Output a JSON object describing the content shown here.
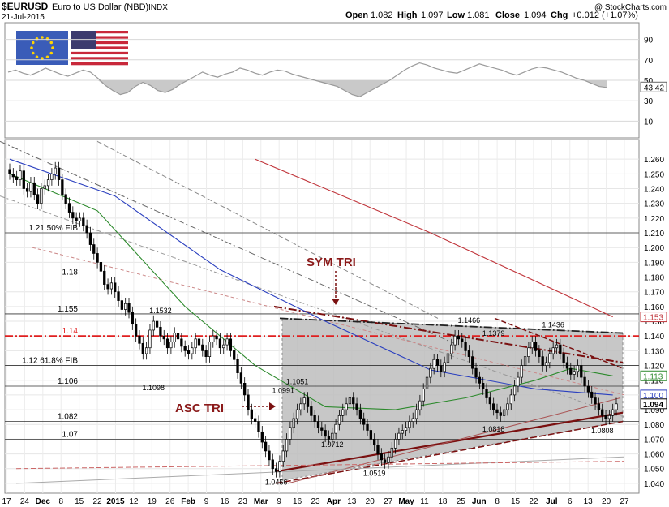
{
  "header": {
    "symbol": "$EURUSD",
    "name": "Euro to US Dollar (NBD)",
    "type": "INDX",
    "date": "21-Jul-2015",
    "watermark": "@ StockCharts.com",
    "ohlc": {
      "open_label": "Open",
      "open": "1.082",
      "high_label": "High",
      "high": "1.097",
      "low_label": "Low",
      "low": "1.081",
      "close_label": "Close",
      "close": "1.094",
      "chg_label": "Chg",
      "chg": "+0.012 (+1.07%)"
    }
  },
  "colors": {
    "ma_blue": "#2a3fbf",
    "ma_green": "#2d8a2d",
    "ma_red": "#c0343a",
    "fib_red": "#e02020",
    "trend_dark": "#7a1010",
    "triangle_fill": "#bdbdbd",
    "annotation": "#8b1a1a",
    "candle_up": "#ffffff",
    "candle_down": "#000000"
  },
  "chart_data": [
    {
      "type": "line",
      "panel": "rsi",
      "ylim": [
        0,
        100
      ],
      "ticks": [
        "90",
        "70",
        "50",
        "30",
        "10"
      ],
      "current_value": "43.42",
      "series": [
        {
          "values": [
            58,
            60,
            57,
            55,
            58,
            62,
            59,
            56,
            54,
            57,
            60,
            58,
            52,
            45,
            40,
            36,
            38,
            44,
            48,
            45,
            40,
            38,
            41,
            46,
            50,
            54,
            58,
            55,
            53,
            56,
            58,
            62,
            60,
            57,
            55,
            58,
            60,
            59,
            56,
            54,
            52,
            50,
            48,
            46,
            44,
            40,
            36,
            34,
            38,
            42,
            46,
            50,
            55,
            60,
            64,
            67,
            65,
            62,
            60,
            58,
            57,
            60,
            63,
            66,
            64,
            62,
            60,
            57,
            55,
            58,
            61,
            63,
            62,
            60,
            58,
            55,
            52,
            50,
            47,
            44,
            43
          ]
        }
      ],
      "overbought": 70,
      "oversold": 30
    },
    {
      "type": "candlestick",
      "panel": "price",
      "ylim": [
        1.035,
        1.27
      ],
      "x_ticks": [
        "17",
        "24",
        "Dec",
        "8",
        "15",
        "22",
        "2015",
        "12",
        "19",
        "26",
        "Feb",
        "9",
        "16",
        "23",
        "Mar",
        "9",
        "16",
        "23",
        "Apr",
        "13",
        "20",
        "27",
        "May",
        "11",
        "18",
        "25",
        "Jun",
        "8",
        "15",
        "22",
        "Jul",
        "6",
        "13",
        "20",
        "27"
      ],
      "y_ticks": [
        "1.260",
        "1.250",
        "1.240",
        "1.230",
        "1.220",
        "1.210",
        "1.200",
        "1.190",
        "1.180",
        "1.170",
        "1.160",
        "1.150",
        "1.140",
        "1.130",
        "1.120",
        "1.110",
        "1.100",
        "1.090",
        "1.080",
        "1.070",
        "1.060",
        "1.050",
        "1.040"
      ],
      "closes": [
        1.25,
        1.248,
        1.246,
        1.252,
        1.24,
        1.238,
        1.244,
        1.236,
        1.23,
        1.24,
        1.242,
        1.246,
        1.25,
        1.254,
        1.246,
        1.236,
        1.23,
        1.224,
        1.22,
        1.218,
        1.22,
        1.215,
        1.21,
        1.202,
        1.196,
        1.19,
        1.184,
        1.175,
        1.172,
        1.176,
        1.17,
        1.164,
        1.158,
        1.162,
        1.156,
        1.148,
        1.14,
        1.135,
        1.128,
        1.132,
        1.144,
        1.15,
        1.146,
        1.14,
        1.138,
        1.132,
        1.136,
        1.142,
        1.138,
        1.133,
        1.13,
        1.128,
        1.132,
        1.138,
        1.134,
        1.13,
        1.126,
        1.136,
        1.14,
        1.138,
        1.132,
        1.134,
        1.138,
        1.13,
        1.124,
        1.115,
        1.108,
        1.1,
        1.09,
        1.084,
        1.082,
        1.075,
        1.068,
        1.062,
        1.056,
        1.05,
        1.048,
        1.055,
        1.062,
        1.07,
        1.078,
        1.084,
        1.09,
        1.094,
        1.098,
        1.092,
        1.086,
        1.082,
        1.078,
        1.076,
        1.072,
        1.07,
        1.074,
        1.08,
        1.086,
        1.09,
        1.094,
        1.098,
        1.094,
        1.09,
        1.084,
        1.08,
        1.076,
        1.07,
        1.066,
        1.06,
        1.056,
        1.054,
        1.058,
        1.064,
        1.07,
        1.074,
        1.076,
        1.078,
        1.082,
        1.084,
        1.09,
        1.096,
        1.104,
        1.112,
        1.118,
        1.124,
        1.12,
        1.116,
        1.122,
        1.128,
        1.134,
        1.14,
        1.138,
        1.136,
        1.13,
        1.126,
        1.118,
        1.112,
        1.108,
        1.104,
        1.098,
        1.094,
        1.09,
        1.088,
        1.086,
        1.09,
        1.094,
        1.1,
        1.106,
        1.112,
        1.12,
        1.126,
        1.132,
        1.136,
        1.13,
        1.126,
        1.12,
        1.122,
        1.128,
        1.132,
        1.134,
        1.128,
        1.122,
        1.118,
        1.114,
        1.116,
        1.12,
        1.112,
        1.106,
        1.102,
        1.098,
        1.094,
        1.09,
        1.086,
        1.084,
        1.086,
        1.09,
        1.094
      ],
      "moving_averages": [
        {
          "color_key": "ma_blue",
          "points": [
            [
              0,
              1.26
            ],
            [
              30,
              1.235
            ],
            [
              60,
              1.185
            ],
            [
              90,
              1.15
            ],
            [
              120,
              1.117
            ],
            [
              150,
              1.104
            ],
            [
              172,
              1.1
            ]
          ]
        },
        {
          "color_key": "ma_green",
          "points": [
            [
              0,
              1.25
            ],
            [
              25,
              1.225
            ],
            [
              50,
              1.16
            ],
            [
              70,
              1.12
            ],
            [
              90,
              1.092
            ],
            [
              110,
              1.09
            ],
            [
              130,
              1.098
            ],
            [
              150,
              1.11
            ],
            [
              160,
              1.118
            ],
            [
              172,
              1.113
            ]
          ]
        },
        {
          "color_key": "ma_red",
          "points": [
            [
              70,
              1.26
            ],
            [
              120,
              1.21
            ],
            [
              172,
              1.153
            ]
          ]
        }
      ],
      "horizontal_lines": [
        {
          "value": 1.21,
          "label": "1.21  50% FIB"
        },
        {
          "value": 1.18,
          "label": "1.18"
        },
        {
          "value": 1.155,
          "label": "1.155"
        },
        {
          "value": 1.14,
          "label": "1.14",
          "style": "fib-red"
        },
        {
          "value": 1.12,
          "label": "1.12  61.8% FIB"
        },
        {
          "value": 1.106,
          "label": "1.106"
        },
        {
          "value": 1.082,
          "label": "1.082"
        },
        {
          "value": 1.07,
          "label": "1.07"
        }
      ],
      "annotations": [
        {
          "text": "1.1532",
          "x": 43,
          "y": 1.1532
        },
        {
          "text": "1.1098",
          "x": 41,
          "y": 1.1098
        },
        {
          "text": "1.1051",
          "x": 82,
          "y": 1.1051
        },
        {
          "text": "1.0991",
          "x": 78,
          "y": 1.0991
        },
        {
          "text": "1.0712",
          "x": 92,
          "y": 1.0712
        },
        {
          "text": "1.0456",
          "x": 76,
          "y": 1.0456
        },
        {
          "text": "1.0519",
          "x": 104,
          "y": 1.0519
        },
        {
          "text": "1.1466",
          "x": 131,
          "y": 1.1466
        },
        {
          "text": "1.1379",
          "x": 138,
          "y": 1.1379
        },
        {
          "text": "1.1436",
          "x": 155,
          "y": 1.1436
        },
        {
          "text": "1.0818",
          "x": 138,
          "y": 1.0818
        },
        {
          "text": "1.0808",
          "x": 169,
          "y": 1.0808
        }
      ],
      "pattern_labels": {
        "sym_tri": "SYM TRI",
        "asc_tri": "ASC TRI"
      },
      "right_badges": [
        {
          "value": 1.153,
          "text": "1.153",
          "color_key": "ma_red"
        },
        {
          "value": 1.113,
          "text": "1.113",
          "color_key": "ma_green"
        },
        {
          "value": 1.1,
          "text": "1.100",
          "color_key": "ma_blue"
        },
        {
          "value": 1.094,
          "text": "1.094",
          "color_key": "candle_down"
        }
      ]
    }
  ]
}
